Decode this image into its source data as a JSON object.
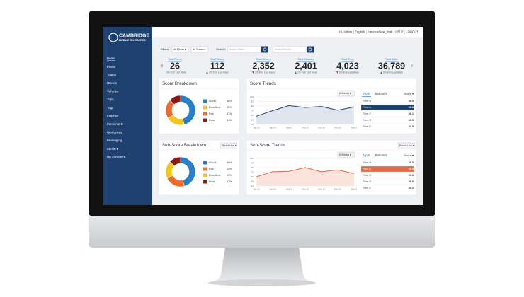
{
  "brand": {
    "name": "CAMBRIDGE",
    "tagline": "MOBILE TELEMATICS"
  },
  "nav": {
    "items": [
      "Home",
      "Fleets",
      "Teams",
      "Drivers",
      "Vehicles",
      "Trips",
      "Tags",
      "Crashes",
      "Panic Alerts",
      "Geofences",
      "Messaging",
      "Admin ▾",
      "My Account ▾"
    ],
    "active": 0
  },
  "topbar": {
    "items": [
      "Hi, Admin",
      "English",
      "America/New_York",
      "HELP",
      "LOGOUT"
    ]
  },
  "filters": {
    "label": "Filters:",
    "fleet": "All Fleets ▾",
    "team": "All Teams ▾",
    "search_label": "Search:",
    "search_fleets": "Search Fleets",
    "search_drivers": "Search Drivers"
  },
  "stats": [
    {
      "label": "Total Fleets",
      "value": "26",
      "change": "0% from Last Week",
      "trend": "none"
    },
    {
      "label": "Total Teams",
      "value": "112",
      "change": "2% from Last Week",
      "trend": "up"
    },
    {
      "label": "Total Drivers",
      "value": "2,352",
      "change": "2% from Last Week",
      "trend": "down"
    },
    {
      "label": "Total Vehicles",
      "value": "2,401",
      "change": "2% from Last Week",
      "trend": "up"
    },
    {
      "label": "Total Trips",
      "value": "4,023",
      "change": "8% from Last Week",
      "trend": "down"
    },
    {
      "label": "Total Miles",
      "value": "36,789",
      "change": "6% from Last Week",
      "trend": "up"
    }
  ],
  "score_breakdown": {
    "title": "Score Breakdown",
    "type": "donut",
    "categories": [
      "Good",
      "Excellent",
      "Fair",
      "Poor"
    ],
    "values": [
      46,
      20,
      21,
      13
    ],
    "value_labels": [
      "46%",
      "20%",
      "21%",
      "13%"
    ],
    "colors": [
      "#2a7fc9",
      "#f5c518",
      "#ef6a2a",
      "#8b1a1a"
    ]
  },
  "score_trends": {
    "title": "Score Trends",
    "type": "line",
    "range": "6 Weeks ▾",
    "color": "#1f4170",
    "fill": "#dfe5ee",
    "x": [
      "Jan 22",
      "Jan 29",
      "Feb 5",
      "Feb 12",
      "Feb 19",
      "Feb 26",
      "Mar 5"
    ],
    "values": [
      58,
      70,
      81,
      77,
      79,
      71,
      78
    ],
    "ylim": [
      40,
      100
    ],
    "yticks": [
      40,
      50,
      60,
      70,
      80,
      90,
      100
    ]
  },
  "score_table": {
    "tabs": [
      "Top 5",
      "Bottom 5"
    ],
    "sort": "Score ▾",
    "selected": 1,
    "highlight": "#1f4170",
    "rows": [
      [
        "Fleet B",
        "98.5"
      ],
      [
        "Fleet A",
        "96.3"
      ],
      [
        "Fleet C",
        "96.1"
      ],
      [
        "Fleet D",
        "95.5"
      ],
      [
        "Fleet E",
        "91.8"
      ]
    ]
  },
  "subscore_breakdown": {
    "title": "Sub-Score Breakdown",
    "type": "donut",
    "filter": "Phone Use ▾",
    "categories": [
      "Good",
      "Fair",
      "Excellent",
      "Poor"
    ],
    "values": [
      46,
      22,
      19,
      13
    ],
    "value_labels": [
      "46%",
      "22%",
      "19%",
      "13%"
    ],
    "colors": [
      "#2a7fc9",
      "#ef6a2a",
      "#f5c518",
      "#8b1a1a"
    ]
  },
  "subscore_trends": {
    "title": "Sub-Score Trends",
    "type": "line",
    "range": "6 Weeks ▾",
    "filter": "Phone Use ▾",
    "color": "#e0694a",
    "fill": "#fbe4dc",
    "x": [
      "Jan 22",
      "Jan 29",
      "Feb 5",
      "Feb 12",
      "Feb 19",
      "Feb 26",
      "Mar 5"
    ],
    "values": [
      60,
      71,
      72,
      80,
      71,
      75,
      67
    ],
    "ylim": [
      40,
      100
    ],
    "yticks": [
      40,
      50,
      60,
      70,
      80,
      90,
      100
    ]
  },
  "subscore_table": {
    "tabs": [
      "Top 5",
      "Bottom 5"
    ],
    "sort": "Score ▾",
    "selected": 1,
    "highlight": "#e0694a",
    "rows": [
      [
        "Fleet B",
        "98.5"
      ],
      [
        "Fleet A",
        "96.3"
      ],
      [
        "Fleet C",
        "96.3"
      ],
      [
        "Fleet D",
        "95.9"
      ],
      [
        "Fleet E",
        "95.2"
      ]
    ]
  }
}
